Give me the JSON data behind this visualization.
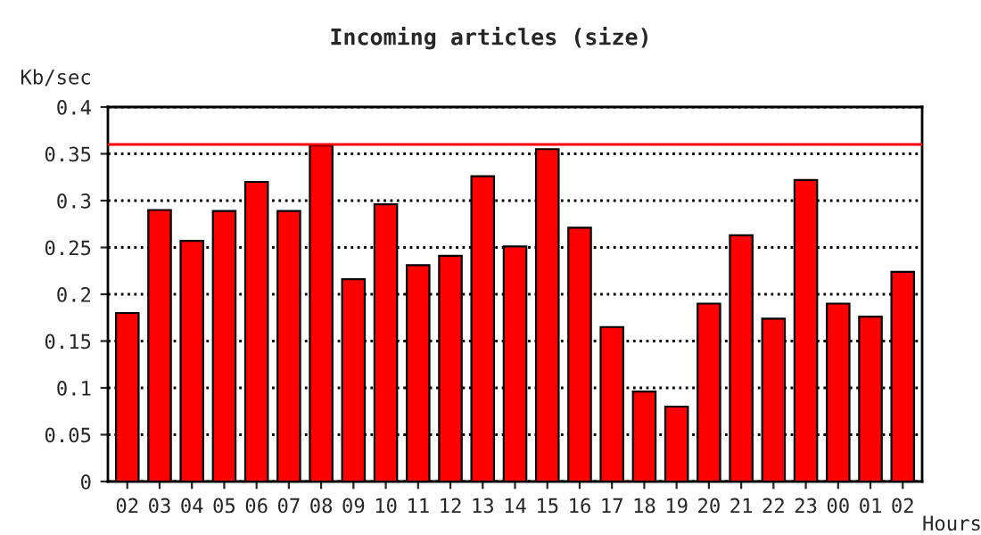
{
  "chart_data": {
    "type": "bar",
    "title": "Incoming articles (size)",
    "ylabel": "Kb/sec",
    "xlabel": "Hours",
    "categories": [
      "02",
      "03",
      "04",
      "05",
      "06",
      "07",
      "08",
      "09",
      "10",
      "11",
      "12",
      "13",
      "14",
      "15",
      "16",
      "17",
      "18",
      "19",
      "20",
      "21",
      "22",
      "23",
      "00",
      "01",
      "02"
    ],
    "values": [
      0.18,
      0.29,
      0.257,
      0.289,
      0.32,
      0.289,
      0.359,
      0.216,
      0.296,
      0.231,
      0.241,
      0.326,
      0.251,
      0.355,
      0.271,
      0.165,
      0.096,
      0.08,
      0.19,
      0.263,
      0.174,
      0.322,
      0.19,
      0.176,
      0.224
    ],
    "color": "#ff0000",
    "ylim": [
      0,
      0.4
    ],
    "yticks": [
      0,
      0.05,
      0.1,
      0.15,
      0.2,
      0.25,
      0.3,
      0.35,
      0.4
    ],
    "ref_lines": [
      {
        "axis": "y",
        "value": 0.36,
        "color": "#ff0000",
        "line_style": "solid"
      }
    ],
    "grid": "y"
  }
}
